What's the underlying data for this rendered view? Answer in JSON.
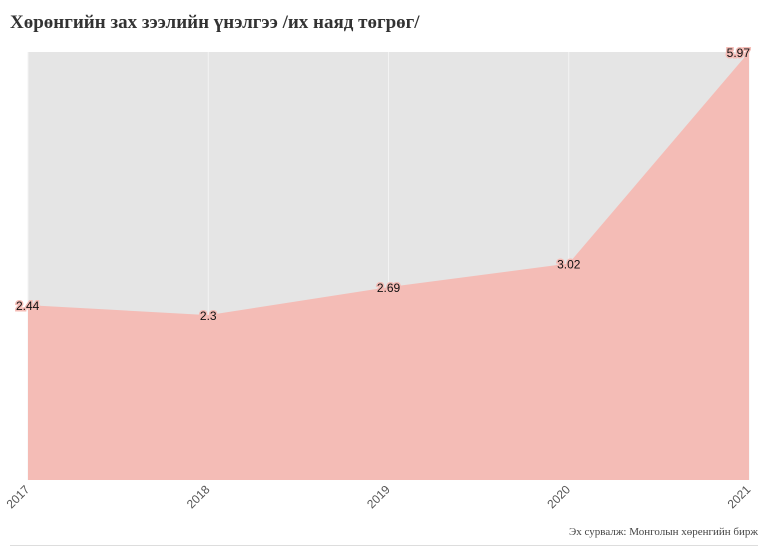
{
  "title": "Хөрөнгийн зах зээлийн үнэлгээ /их наяд төгрөг/",
  "source": "Эх сурвалж: Монголын хөренгийн бирж",
  "colors": {
    "plot_background": "#e5e5e5",
    "area_fill": "#f4bcb6",
    "grid": "#f3f3f3",
    "label_text": "#111111"
  },
  "chart_data": {
    "type": "area",
    "title": "Хөрөнгийн зах зээлийн үнэлгээ /их наяд төгрөг/",
    "xlabel": "",
    "ylabel": "",
    "categories": [
      "2017",
      "2018",
      "2019",
      "2020",
      "2021"
    ],
    "values": [
      2.44,
      2.3,
      2.69,
      3.02,
      5.97
    ],
    "data_labels": [
      "2.44",
      "2.3",
      "2.69",
      "3.02",
      "5.97"
    ],
    "ylim": [
      0,
      5.97
    ],
    "grid": true,
    "legend": "none"
  }
}
